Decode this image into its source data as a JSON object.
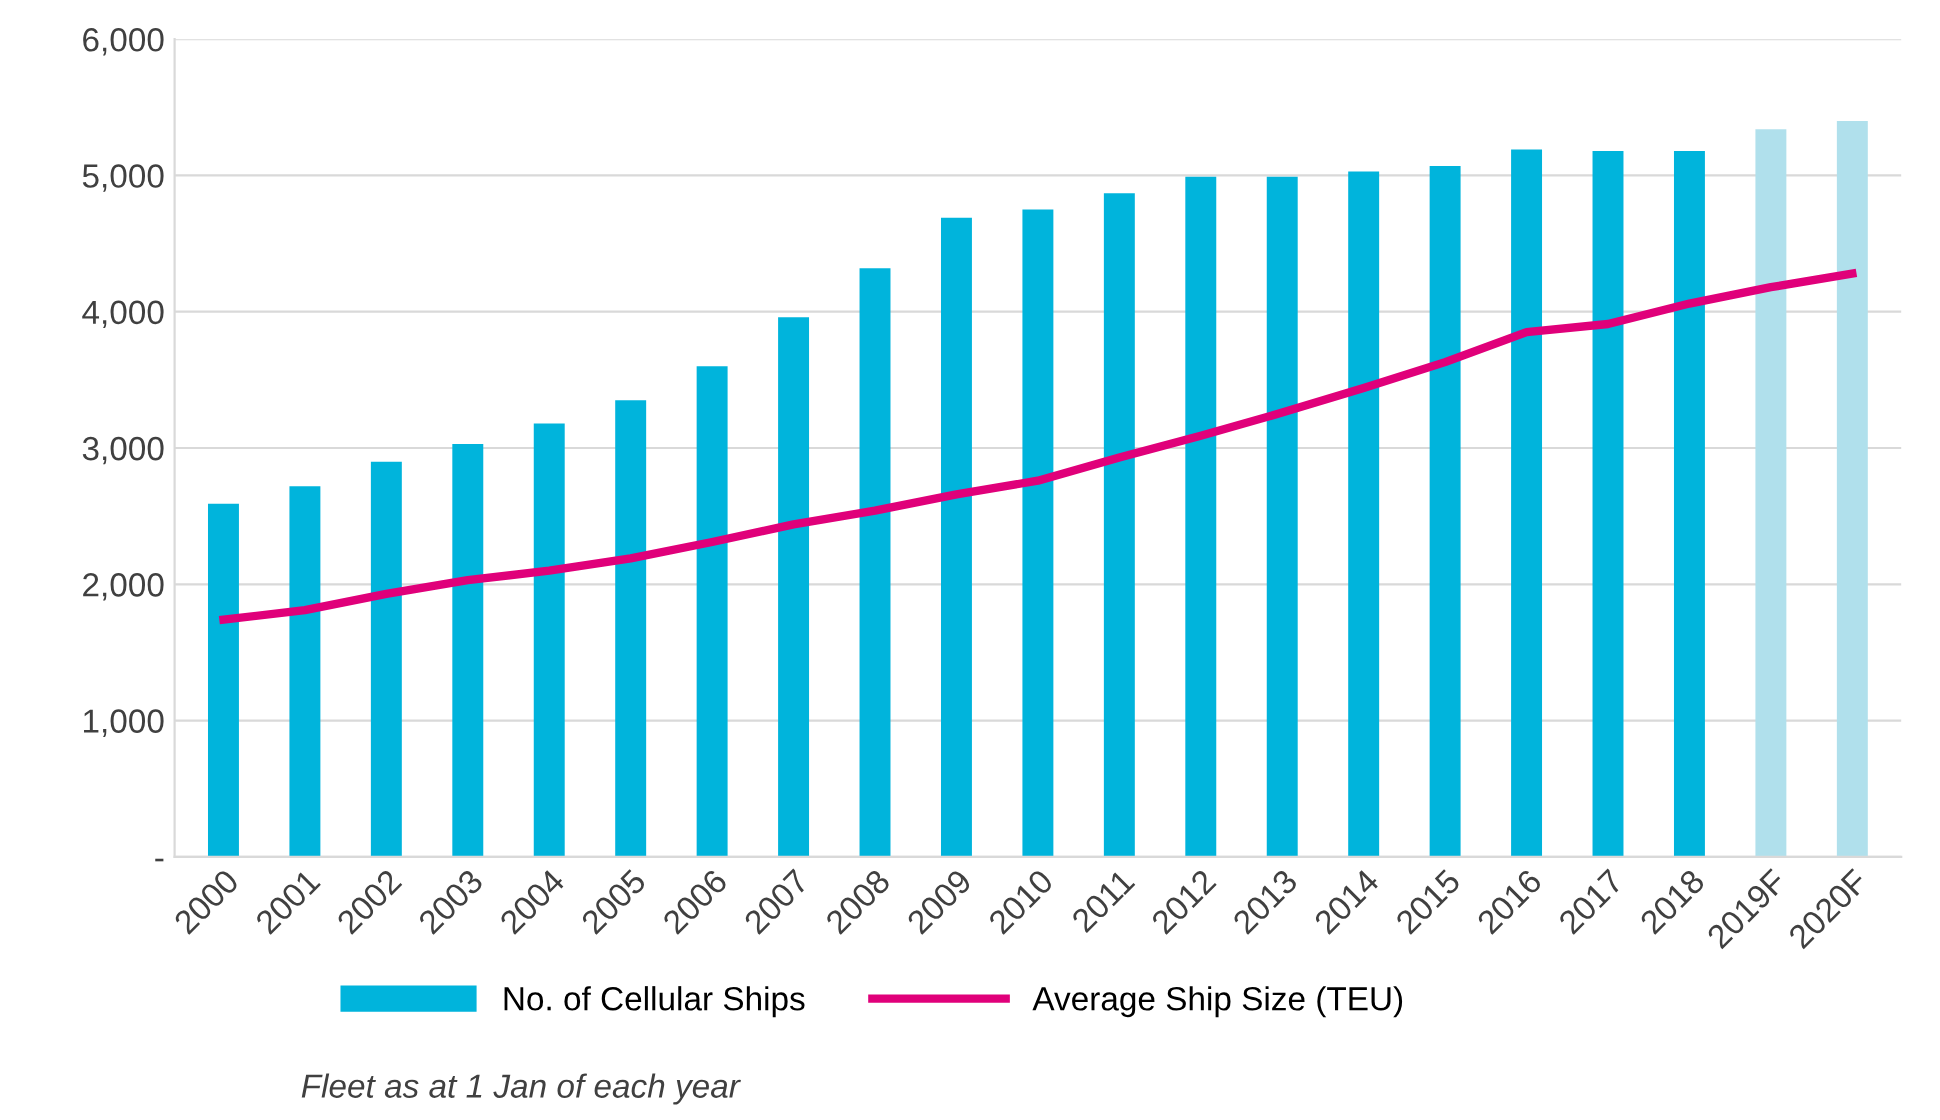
{
  "chart_data": {
    "type": "bar",
    "categories": [
      "2000",
      "2001",
      "2002",
      "2003",
      "2004",
      "2005",
      "2006",
      "2007",
      "2008",
      "2009",
      "2010",
      "2011",
      "2012",
      "2013",
      "2014",
      "2015",
      "2016",
      "2017",
      "2018",
      "2019F",
      "2020F"
    ],
    "series": [
      {
        "name": "No. of Cellular Ships",
        "color": "#00b4dc",
        "colors": [
          "#00b4dc",
          "#00b4dc",
          "#00b4dc",
          "#00b4dc",
          "#00b4dc",
          "#00b4dc",
          "#00b4dc",
          "#00b4dc",
          "#00b4dc",
          "#00b4dc",
          "#00b4dc",
          "#00b4dc",
          "#00b4dc",
          "#00b4dc",
          "#00b4dc",
          "#00b4dc",
          "#00b4dc",
          "#00b4dc",
          "#00b4dc",
          "#b0e0ec",
          "#b0e0ec"
        ],
        "values": [
          2590,
          2720,
          2900,
          3030,
          3180,
          3350,
          3600,
          3960,
          4320,
          4690,
          4750,
          4870,
          4990,
          4990,
          5030,
          5070,
          5190,
          5180,
          5180,
          5340,
          5400
        ]
      },
      {
        "name": "Average Ship Size (TEU)",
        "type": "line",
        "color": "#e0007a",
        "values": [
          1740,
          1810,
          1930,
          2030,
          2100,
          2190,
          2310,
          2440,
          2540,
          2660,
          2760,
          2930,
          3090,
          3260,
          3440,
          3630,
          3850,
          3910,
          4060,
          4180,
          4280
        ]
      }
    ],
    "ylim": [
      0,
      6000
    ],
    "yticks": [
      {
        "value": 0,
        "label": "-"
      },
      {
        "value": 1000,
        "label": "1,000"
      },
      {
        "value": 2000,
        "label": "2,000"
      },
      {
        "value": 3000,
        "label": "3,000"
      },
      {
        "value": 4000,
        "label": "4,000"
      },
      {
        "value": 5000,
        "label": "5,000"
      },
      {
        "value": 6000,
        "label": "6,000"
      }
    ],
    "grid": "y",
    "legend": "bottom",
    "line_style": "solid",
    "marker": "none",
    "annotations": [
      "Fleet as at 1 Jan of each year"
    ]
  }
}
